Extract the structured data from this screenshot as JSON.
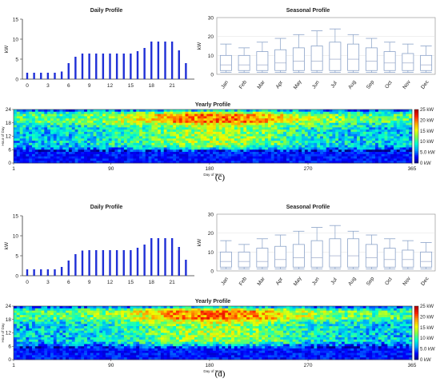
{
  "charts": [
    {
      "caption": "(c)",
      "daily": {
        "title": "Daily Profile",
        "ylabel": "kW",
        "ylim": [
          0,
          15
        ],
        "yticks": [
          0,
          5,
          10,
          15
        ],
        "xticks": [
          0,
          3,
          6,
          9,
          12,
          15,
          18,
          21
        ],
        "hours": [
          0,
          1,
          2,
          3,
          4,
          5,
          6,
          7,
          8,
          9,
          10,
          11,
          12,
          13,
          14,
          15,
          16,
          17,
          18,
          19,
          20,
          21,
          22,
          23
        ],
        "values": [
          1.6,
          1.6,
          1.6,
          1.6,
          1.6,
          1.9,
          4.0,
          5.6,
          6.4,
          6.4,
          6.4,
          6.4,
          6.4,
          6.4,
          6.4,
          6.4,
          7.0,
          7.8,
          9.4,
          9.4,
          9.4,
          9.4,
          7.2,
          4.0
        ]
      },
      "seasonal": {
        "title": "Seasonal Profile",
        "ylabel": "kW",
        "ylim": [
          0,
          30
        ],
        "yticks": [
          0,
          10,
          20,
          30
        ],
        "months": [
          "Jan",
          "Feb",
          "Mar",
          "Apr",
          "May",
          "Jun",
          "Jul",
          "Aug",
          "Sep",
          "Oct",
          "Nov",
          "Dec"
        ],
        "boxes": [
          {
            "min": 1,
            "q1": 2,
            "median": 5,
            "q3": 10,
            "max": 16
          },
          {
            "min": 1,
            "q1": 2,
            "median": 5,
            "q3": 10,
            "max": 14
          },
          {
            "min": 1,
            "q1": 2,
            "median": 5,
            "q3": 12,
            "max": 17
          },
          {
            "min": 1,
            "q1": 2,
            "median": 6,
            "q3": 13,
            "max": 19
          },
          {
            "min": 1,
            "q1": 2,
            "median": 7,
            "q3": 14,
            "max": 21
          },
          {
            "min": 1,
            "q1": 2,
            "median": 7,
            "q3": 15,
            "max": 23
          },
          {
            "min": 1,
            "q1": 2,
            "median": 8,
            "q3": 17,
            "max": 24
          },
          {
            "min": 1,
            "q1": 2,
            "median": 8,
            "q3": 16,
            "max": 21
          },
          {
            "min": 1,
            "q1": 2,
            "median": 7,
            "q3": 14,
            "max": 19
          },
          {
            "min": 1,
            "q1": 2,
            "median": 6,
            "q3": 12,
            "max": 17
          },
          {
            "min": 1,
            "q1": 2,
            "median": 6,
            "q3": 11,
            "max": 16
          },
          {
            "min": 1,
            "q1": 2,
            "median": 5,
            "q3": 10,
            "max": 15
          }
        ]
      },
      "yearly": {
        "title": "Yearly Profile",
        "ylabel": "Hour of Day",
        "xlabel": "Day of Year",
        "yticks": [
          0,
          6,
          12,
          18,
          24
        ],
        "xticks": [
          1,
          90,
          180,
          270,
          365
        ],
        "colorbar": [
          "25 kW",
          "20 kW",
          "15 kW",
          "10 kW",
          "5.0 kW",
          "0 kW"
        ]
      }
    },
    {
      "caption": "(d)",
      "daily": {
        "title": "Daily Profile",
        "ylabel": "kW",
        "ylim": [
          0,
          15
        ],
        "yticks": [
          0,
          5,
          10,
          15
        ],
        "xticks": [
          0,
          3,
          6,
          9,
          12,
          15,
          18,
          21
        ],
        "hours": [
          0,
          1,
          2,
          3,
          4,
          5,
          6,
          7,
          8,
          9,
          10,
          11,
          12,
          13,
          14,
          15,
          16,
          17,
          18,
          19,
          20,
          21,
          22,
          23
        ],
        "values": [
          1.6,
          1.6,
          1.6,
          1.6,
          1.6,
          2.2,
          3.8,
          5.4,
          6.3,
          6.4,
          6.4,
          6.4,
          6.4,
          6.4,
          6.4,
          6.4,
          7.0,
          7.8,
          9.4,
          9.4,
          9.4,
          9.4,
          7.2,
          4.0
        ]
      },
      "seasonal": {
        "title": "Seasonal Profile",
        "ylabel": "kW",
        "ylim": [
          0,
          30
        ],
        "yticks": [
          0,
          10,
          20,
          30
        ],
        "months": [
          "Jan",
          "Feb",
          "Mar",
          "Apr",
          "May",
          "Jun",
          "Jul",
          "Aug",
          "Sep",
          "Oct",
          "Nov",
          "Dec"
        ],
        "boxes": [
          {
            "min": 1,
            "q1": 2,
            "median": 5,
            "q3": 10,
            "max": 16
          },
          {
            "min": 1,
            "q1": 2,
            "median": 5,
            "q3": 10,
            "max": 14
          },
          {
            "min": 1,
            "q1": 2,
            "median": 5,
            "q3": 12,
            "max": 17
          },
          {
            "min": 1,
            "q1": 2,
            "median": 6,
            "q3": 13,
            "max": 19
          },
          {
            "min": 1,
            "q1": 2,
            "median": 7,
            "q3": 14,
            "max": 21
          },
          {
            "min": 1,
            "q1": 2,
            "median": 7,
            "q3": 16,
            "max": 23
          },
          {
            "min": 1,
            "q1": 2,
            "median": 8,
            "q3": 17,
            "max": 24
          },
          {
            "min": 1,
            "q1": 2,
            "median": 8,
            "q3": 17,
            "max": 21
          },
          {
            "min": 1,
            "q1": 2,
            "median": 7,
            "q3": 14,
            "max": 19
          },
          {
            "min": 1,
            "q1": 2,
            "median": 6,
            "q3": 12,
            "max": 17
          },
          {
            "min": 1,
            "q1": 2,
            "median": 6,
            "q3": 11,
            "max": 16
          },
          {
            "min": 1,
            "q1": 2,
            "median": 5,
            "q3": 10,
            "max": 15
          }
        ]
      },
      "yearly": {
        "title": "Yearly Profile",
        "ylabel": "Hour of Day",
        "xlabel": "Day of Year",
        "yticks": [
          0,
          6,
          12,
          18,
          24
        ],
        "xticks": [
          1,
          90,
          180,
          270,
          365
        ],
        "colorbar": [
          "25 kW",
          "20 kW",
          "15 kW",
          "10 kW",
          "5.0 kW",
          "0 kW"
        ]
      }
    }
  ],
  "colors": {
    "bar": "#1f2fd6",
    "box": "#8aa2c8",
    "median": "#9aa8c8",
    "colormap": [
      "#00007a",
      "#0000ff",
      "#00a2ff",
      "#00ffd0",
      "#7dff4a",
      "#f0ff00",
      "#ffa000",
      "#ff2000",
      "#b00000"
    ]
  }
}
